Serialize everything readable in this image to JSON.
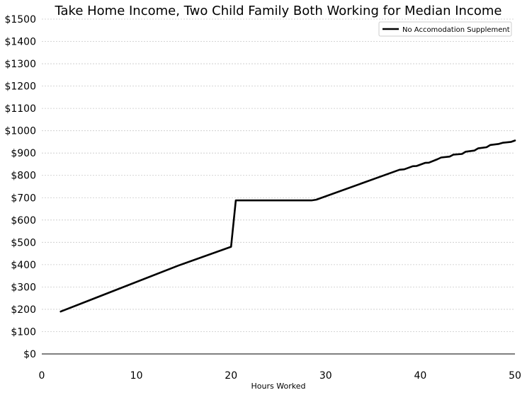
{
  "chart_data": {
    "type": "line",
    "title": "Take Home Income, Two Child Family Both Working for Median Income",
    "xlabel": "Hours Worked",
    "ylabel": "",
    "xlim": [
      0,
      50
    ],
    "ylim": [
      0,
      1500
    ],
    "xticks": [
      0,
      10,
      20,
      30,
      40,
      50
    ],
    "xtick_labels": [
      "0",
      "10",
      "20",
      "30",
      "40",
      "50"
    ],
    "yticks": [
      0,
      100,
      200,
      300,
      400,
      500,
      600,
      700,
      800,
      900,
      1000,
      1100,
      1200,
      1300,
      1400,
      1500
    ],
    "ytick_labels": [
      "$0",
      "$100",
      "$200",
      "$300",
      "$400",
      "$500",
      "$600",
      "$700",
      "$800",
      "$900",
      "$1000",
      "$1100",
      "$1200",
      "$1300",
      "$1400",
      "$1500"
    ],
    "grid": "horizontal dashed",
    "legend_position": "top-right",
    "series": [
      {
        "name": "No Accomodation Supplement",
        "color": "#000000",
        "x": [
          2,
          14.5,
          20,
          20.5,
          28.5,
          29,
          37.8,
          38.3,
          39.2,
          39.6,
          40.5,
          40.9,
          41.8,
          42.2,
          43.1,
          43.5,
          44.4,
          44.8,
          45.7,
          46.1,
          47,
          47.4,
          48.3,
          48.7,
          49.6,
          50
        ],
        "values": [
          190,
          397,
          480,
          688,
          688,
          691,
          825,
          827,
          841,
          842,
          856,
          857,
          872,
          880,
          884,
          893,
          896,
          906,
          911,
          921,
          926,
          936,
          941,
          946,
          950,
          956
        ]
      }
    ]
  }
}
